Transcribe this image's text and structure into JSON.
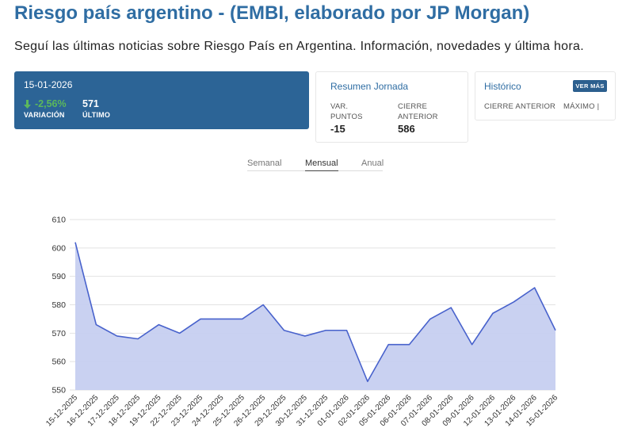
{
  "page": {
    "title": "Riesgo país argentino - (EMBI, elaborado por JP Morgan)",
    "subtitle": "Seguí las últimas noticias sobre Riesgo País en Argentina. Información, novedades y última hora."
  },
  "summary_card": {
    "date": "15-01-2026",
    "variation": "-2,56%",
    "variation_icon": "arrow-down-icon",
    "variation_label": "VARIACIÓN",
    "last": "571",
    "last_label": "ÚLTIMO"
  },
  "resumen": {
    "title": "Resumen Jornada",
    "var_label": "VAR. PUNTOS",
    "var_value": "-15",
    "close_label": "CIERRE ANTERIOR",
    "close_value": "586"
  },
  "historico": {
    "title": "Histórico",
    "button": "VER MÁS",
    "close_label": "CIERRE ANTERIOR",
    "max_label": "MÁXIMO |"
  },
  "tabs": [
    {
      "label": "Semanal",
      "active": false
    },
    {
      "label": "Mensual",
      "active": true
    },
    {
      "label": "Anual",
      "active": false
    }
  ],
  "colors": {
    "accent": "#2f6da3",
    "card": "#2c6496",
    "green": "#5cb85c",
    "line": "#4862cc",
    "fill": "#c6cff0",
    "grid": "#e2e2e2"
  },
  "chart_data": {
    "type": "area",
    "title": "",
    "xlabel": "",
    "ylabel": "",
    "ylim": [
      550,
      610
    ],
    "y_ticks": [
      550,
      560,
      570,
      580,
      590,
      600,
      610
    ],
    "categories": [
      "15-12-2025",
      "16-12-2025",
      "17-12-2025",
      "18-12-2025",
      "19-12-2025",
      "22-12-2025",
      "23-12-2025",
      "24-12-2025",
      "25-12-2025",
      "26-12-2025",
      "29-12-2025",
      "30-12-2025",
      "31-12-2025",
      "01-01-2026",
      "02-01-2026",
      "05-01-2026",
      "06-01-2026",
      "07-01-2026",
      "08-01-2026",
      "09-01-2026",
      "12-01-2026",
      "13-01-2026",
      "14-01-2026",
      "15-01-2026"
    ],
    "values": [
      602,
      573,
      569,
      568,
      573,
      570,
      575,
      575,
      575,
      580,
      571,
      569,
      571,
      571,
      553,
      566,
      566,
      575,
      579,
      566,
      577,
      581,
      586,
      571
    ]
  }
}
